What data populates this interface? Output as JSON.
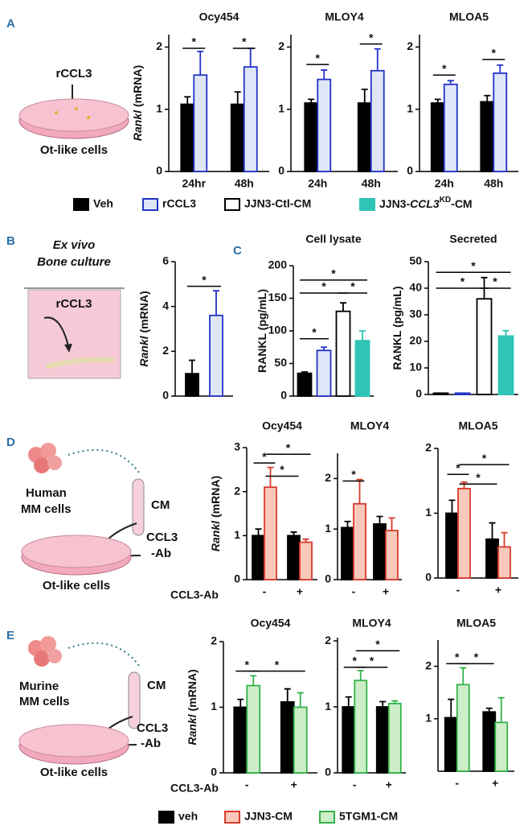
{
  "panel_letters": [
    "A",
    "B",
    "C",
    "D",
    "E"
  ],
  "illustrations": {
    "A": [
      "rCCL3",
      "Ot-like cells"
    ],
    "B": [
      "Ex vivo",
      "Bone culture",
      "rCCL3"
    ],
    "D": [
      "Human",
      "MM cells",
      "CM",
      "CCL3",
      "-Ab",
      "Ot-like cells"
    ],
    "E": [
      "Murine",
      "MM cells",
      "CM",
      "CCL3",
      "-Ab",
      "Ot-like cells"
    ]
  },
  "legends": [
    {
      "items": [
        {
          "name": "Veh",
          "color": "#000000",
          "edgecolor": "#000000"
        },
        {
          "name": "rCCL3",
          "color": "#dfe6f7",
          "edgecolor": "#2233c8"
        },
        {
          "name": "JJN3-Ctl-CM",
          "color": "#ffffff",
          "edgecolor": "#000000"
        },
        {
          "name_parts": [
            "JJN3-",
            "CCL3",
            "KD",
            "-CM"
          ],
          "color": "#2ec4b6",
          "edgecolor": "#2ec4b6"
        }
      ]
    },
    {
      "items": [
        {
          "name": "veh",
          "color": "#000000",
          "edgecolor": "#000000"
        },
        {
          "name": "JJN3-CM",
          "color": "#f8c9bb",
          "edgecolor": "#d93a2b"
        },
        {
          "name": "5TGM1-CM",
          "color": "#cdeec8",
          "edgecolor": "#33b24a"
        }
      ]
    }
  ],
  "chart_data": [
    {
      "type": "bar",
      "title": "Ocy454",
      "ylabel": [
        "Rankl",
        "(mRNA)"
      ],
      "categories": [
        "24hr",
        "48h"
      ],
      "ylim": [
        0,
        2.2
      ],
      "yticks": [
        0,
        1,
        2
      ],
      "series": [
        {
          "color": "#000000",
          "edgecolor": "#000000",
          "values": [
            1.08,
            1.08
          ],
          "errors": [
            0.12,
            0.2
          ]
        },
        {
          "color": "#dfe6f7",
          "edgecolor": "#2233c8",
          "values": [
            1.55,
            1.68
          ],
          "errors": [
            0.38,
            0.3
          ]
        }
      ],
      "annotations": [
        "*",
        "*"
      ]
    },
    {
      "type": "bar",
      "title": "MLOY4",
      "categories": [
        "24h",
        "48h"
      ],
      "ylim": [
        0,
        2.2
      ],
      "yticks": [
        0,
        1,
        2
      ],
      "series": [
        {
          "color": "#000000",
          "edgecolor": "#000000",
          "values": [
            1.1,
            1.1
          ],
          "errors": [
            0.06,
            0.22
          ]
        },
        {
          "color": "#dfe6f7",
          "edgecolor": "#2233c8",
          "values": [
            1.48,
            1.62
          ],
          "errors": [
            0.15,
            0.35
          ]
        }
      ],
      "annotations": [
        "*",
        "*"
      ]
    },
    {
      "type": "bar",
      "title": "MLOA5",
      "categories": [
        "24h",
        "48h"
      ],
      "ylim": [
        0,
        2.2
      ],
      "yticks": [
        0,
        1,
        2
      ],
      "series": [
        {
          "color": "#000000",
          "edgecolor": "#000000",
          "values": [
            1.1,
            1.12
          ],
          "errors": [
            0.06,
            0.1
          ]
        },
        {
          "color": "#dfe6f7",
          "edgecolor": "#2233c8",
          "values": [
            1.4,
            1.58
          ],
          "errors": [
            0.06,
            0.13
          ]
        }
      ],
      "annotations": [
        "*",
        "*"
      ]
    },
    {
      "type": "bar",
      "ylabel": [
        "Rankl",
        "(mRNA)"
      ],
      "categories": [
        null
      ],
      "ylim": [
        0,
        6
      ],
      "yticks": [
        0,
        2,
        4,
        6
      ],
      "series": [
        {
          "color": "#000000",
          "edgecolor": "#000000",
          "values": [
            1.0
          ],
          "errors": [
            0.6
          ]
        },
        {
          "color": "#dfe6f7",
          "edgecolor": "#2233c8",
          "values": [
            3.6
          ],
          "errors": [
            1.1
          ]
        }
      ],
      "annotations": [
        "*"
      ]
    },
    {
      "type": "bar",
      "title": "Cell lysate",
      "ylabel": [
        "RANKL (pg/mL)"
      ],
      "categories": [
        null
      ],
      "ylim": [
        0,
        200
      ],
      "yticks": [
        0,
        50,
        100,
        150,
        200
      ],
      "series": [
        {
          "color": "#000000",
          "edgecolor": "#000000",
          "values": [
            35
          ],
          "errors": [
            2
          ]
        },
        {
          "color": "#dfe6f7",
          "edgecolor": "#2233c8",
          "values": [
            70
          ],
          "errors": [
            5
          ]
        },
        {
          "color": "#ffffff",
          "edgecolor": "#000000",
          "values": [
            130
          ],
          "errors": [
            13
          ]
        },
        {
          "color": "#2ec4b6",
          "edgecolor": "#2ec4b6",
          "values": [
            85
          ],
          "errors": [
            15
          ]
        }
      ],
      "annotations": [
        "*",
        "*",
        "*",
        "*"
      ]
    },
    {
      "type": "bar",
      "title": "Secreted",
      "ylabel": [
        "RANKL (pg/mL)"
      ],
      "categories": [
        null
      ],
      "ylim": [
        0,
        50
      ],
      "yticks": [
        0,
        10,
        20,
        30,
        40,
        50
      ],
      "series": [
        {
          "color": "#000000",
          "edgecolor": "#000000",
          "values": [
            0.5
          ],
          "errors": [
            0
          ]
        },
        {
          "color": "#dfe6f7",
          "edgecolor": "#2233c8",
          "values": [
            0.5
          ],
          "errors": [
            0
          ]
        },
        {
          "color": "#ffffff",
          "edgecolor": "#000000",
          "values": [
            36
          ],
          "errors": [
            8
          ]
        },
        {
          "color": "#2ec4b6",
          "edgecolor": "#2ec4b6",
          "values": [
            22
          ],
          "errors": [
            2
          ]
        }
      ],
      "annotations": [
        "*",
        "*",
        "*"
      ]
    },
    {
      "type": "bar",
      "title": "Ocy454",
      "ylabel": [
        "Rankl",
        "(mRNA)"
      ],
      "xlabel": "CCL3-Ab",
      "categories": [
        "-",
        "+"
      ],
      "ylim": [
        0,
        3
      ],
      "yticks": [
        0,
        1,
        2,
        3
      ],
      "series": [
        {
          "color": "#000000",
          "edgecolor": "#000000",
          "values": [
            1.0,
            1.0
          ],
          "errors": [
            0.15,
            0.08
          ]
        },
        {
          "color": "#f8c9bb",
          "edgecolor": "#d93a2b",
          "values": [
            2.1,
            0.85
          ],
          "errors": [
            0.45,
            0.07
          ]
        }
      ],
      "annotations": [
        "*",
        "*",
        "*"
      ]
    },
    {
      "type": "bar",
      "title": "MLOY4",
      "categories": [
        "-",
        "+"
      ],
      "ylim": [
        0,
        2.5
      ],
      "yticks": [
        0,
        1,
        2
      ],
      "series": [
        {
          "color": "#000000",
          "edgecolor": "#000000",
          "values": [
            1.03,
            1.1
          ],
          "errors": [
            0.12,
            0.15
          ]
        },
        {
          "color": "#f8c9bb",
          "edgecolor": "#d93a2b",
          "values": [
            1.5,
            0.97
          ],
          "errors": [
            0.48,
            0.25
          ]
        }
      ],
      "annotations": [
        "*"
      ]
    },
    {
      "type": "bar",
      "title": "MLOA5",
      "categories": [
        "-",
        "+"
      ],
      "ylim": [
        0,
        2
      ],
      "yticks": [
        0,
        1,
        2
      ],
      "series": [
        {
          "color": "#000000",
          "edgecolor": "#000000",
          "values": [
            1.0,
            0.6
          ],
          "errors": [
            0.2,
            0.25
          ]
        },
        {
          "color": "#f8c9bb",
          "edgecolor": "#d93a2b",
          "values": [
            1.38,
            0.48
          ],
          "errors": [
            0.1,
            0.22
          ]
        }
      ],
      "annotations": [
        "*",
        "*",
        "*"
      ]
    },
    {
      "type": "bar",
      "title": "Ocy454",
      "ylabel": [
        "Rankl",
        "(mRNA)"
      ],
      "xlabel": "CCL3-Ab",
      "categories": [
        "-",
        "+"
      ],
      "ylim": [
        0,
        2
      ],
      "yticks": [
        0,
        1,
        2
      ],
      "series": [
        {
          "color": "#000000",
          "edgecolor": "#000000",
          "values": [
            1.0,
            1.08
          ],
          "errors": [
            0.12,
            0.2
          ]
        },
        {
          "color": "#cdeec8",
          "edgecolor": "#33b24a",
          "values": [
            1.33,
            1.0
          ],
          "errors": [
            0.15,
            0.22
          ]
        }
      ],
      "annotations": [
        "*",
        "*"
      ]
    },
    {
      "type": "bar",
      "title": "MLOY4",
      "categories": [
        "-",
        "+"
      ],
      "ylim": [
        0,
        2.05
      ],
      "yticks": [
        0,
        1,
        2
      ],
      "series": [
        {
          "color": "#000000",
          "edgecolor": "#000000",
          "values": [
            1.0,
            1.0
          ],
          "errors": [
            0.15,
            0.08
          ]
        },
        {
          "color": "#cdeec8",
          "edgecolor": "#33b24a",
          "values": [
            1.4,
            1.05
          ],
          "errors": [
            0.15,
            0.04
          ]
        }
      ],
      "annotations": [
        "*",
        "*",
        "*"
      ]
    },
    {
      "type": "bar",
      "title": "MLOA5",
      "categories": [
        "-",
        "+"
      ],
      "ylim": [
        0,
        2.5
      ],
      "yticks": [
        1,
        2
      ],
      "series": [
        {
          "color": "#000000",
          "edgecolor": "#000000",
          "values": [
            1.02,
            1.13
          ],
          "errors": [
            0.35,
            0.07
          ]
        },
        {
          "color": "#cdeec8",
          "edgecolor": "#33b24a",
          "values": [
            1.65,
            0.93
          ],
          "errors": [
            0.32,
            0.47
          ]
        }
      ],
      "annotations": [
        "*",
        "*"
      ]
    }
  ]
}
